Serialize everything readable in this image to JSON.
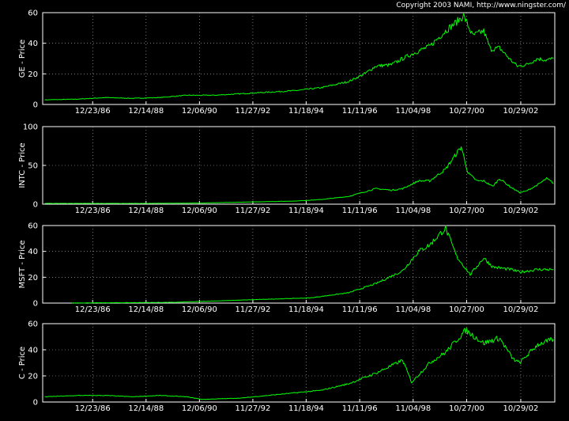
{
  "copyright": "Copyright 2003 NAMI, http://www.ningster.com/",
  "colors": {
    "background": "#000000",
    "axes": "#ffffff",
    "grid": "#bdbdbd",
    "series": "#00ff00"
  },
  "chart_data": [
    {
      "type": "line",
      "ylabel": "GE - Price",
      "ylim": [
        0,
        60
      ],
      "yticks": [
        "0",
        "20",
        "40",
        "60"
      ],
      "xticks": [
        "12/23/86",
        "12/14/88",
        "12/06/90",
        "11/27/92",
        "11/18/94",
        "11/11/96",
        "11/04/98",
        "10/27/00",
        "10/29/02"
      ],
      "grid": true,
      "series": [
        {
          "x": [
            "1985-03",
            "1986-06",
            "1987-06",
            "1988-06",
            "1989-06",
            "1990-06",
            "1991-06",
            "1992-06",
            "1993-06",
            "1994-06",
            "1995-06",
            "1996-06",
            "1997-01",
            "1997-06",
            "1998-01",
            "1998-06",
            "1999-01",
            "1999-06",
            "2000-01",
            "2000-06",
            "2000-09",
            "2001-01",
            "2001-06",
            "2001-09",
            "2002-01",
            "2002-06",
            "2002-09",
            "2003-01",
            "2003-06",
            "2003-10",
            "2004-01"
          ],
          "y": [
            3,
            3.5,
            4.5,
            4,
            4.5,
            6,
            6,
            7,
            8,
            9,
            11,
            15,
            20,
            25,
            26,
            30,
            35,
            38,
            48,
            54,
            58,
            45,
            48,
            36,
            37,
            29,
            25,
            26,
            30,
            29,
            30
          ]
        }
      ]
    },
    {
      "type": "line",
      "ylabel": "INTC - Price",
      "ylim": [
        0,
        100
      ],
      "yticks": [
        "0",
        "50",
        "100"
      ],
      "xticks": [
        "12/23/86",
        "12/14/88",
        "12/06/90",
        "11/27/92",
        "11/18/94",
        "11/11/96",
        "11/04/98",
        "10/27/00",
        "10/29/02"
      ],
      "grid": true,
      "series": [
        {
          "x": [
            "1985-03",
            "1987-01",
            "1989-01",
            "1991-01",
            "1993-01",
            "1994-06",
            "1995-06",
            "1996-06",
            "1997-06",
            "1998-01",
            "1998-06",
            "1999-01",
            "1999-06",
            "2000-01",
            "2000-08",
            "2000-11",
            "2001-03",
            "2001-06",
            "2001-10",
            "2002-01",
            "2002-06",
            "2002-10",
            "2003-01",
            "2003-06",
            "2003-10",
            "2004-01"
          ],
          "y": [
            1,
            1,
            1,
            1.5,
            3,
            4,
            6,
            10,
            20,
            18,
            20,
            30,
            30,
            45,
            74,
            40,
            30,
            30,
            23,
            33,
            22,
            15,
            17,
            25,
            33,
            27
          ]
        }
      ]
    },
    {
      "type": "line",
      "ylabel": "MSFT - Price",
      "ylim": [
        0,
        60
      ],
      "yticks": [
        "0",
        "20",
        "40",
        "60"
      ],
      "xticks": [
        "12/23/86",
        "12/14/88",
        "12/06/90",
        "11/27/92",
        "11/18/94",
        "11/11/96",
        "11/04/98",
        "10/27/00",
        "10/29/02"
      ],
      "grid": true,
      "series": [
        {
          "x": [
            "1986-03",
            "1988-01",
            "1990-01",
            "1992-01",
            "1993-06",
            "1995-01",
            "1996-06",
            "1997-06",
            "1998-06",
            "1999-01",
            "1999-06",
            "2000-01",
            "2000-06",
            "2000-12",
            "2001-06",
            "2001-10",
            "2002-06",
            "2002-10",
            "2003-06",
            "2004-01"
          ],
          "y": [
            0.1,
            0.3,
            0.6,
            2,
            3,
            4,
            8,
            15,
            25,
            40,
            45,
            58,
            36,
            22,
            35,
            28,
            26,
            24,
            26,
            26
          ]
        }
      ]
    },
    {
      "type": "line",
      "ylabel": "C - Price",
      "ylim": [
        0,
        60
      ],
      "yticks": [
        "0",
        "20",
        "40",
        "60"
      ],
      "xticks": [
        "12/23/86",
        "12/14/88",
        "12/06/90",
        "11/27/92",
        "11/18/94",
        "11/11/96",
        "11/04/98",
        "10/27/00",
        "10/29/02"
      ],
      "grid": true,
      "series": [
        {
          "x": [
            "1985-03",
            "1986-06",
            "1987-06",
            "1988-06",
            "1989-06",
            "1990-06",
            "1991-01",
            "1992-06",
            "1993-06",
            "1994-06",
            "1995-06",
            "1996-06",
            "1997-06",
            "1998-06",
            "1998-10",
            "1999-06",
            "2000-01",
            "2000-10",
            "2001-06",
            "2002-01",
            "2002-07",
            "2002-10",
            "2003-06",
            "2004-01"
          ],
          "y": [
            4,
            5,
            5,
            4,
            5,
            4,
            2,
            3,
            5,
            7,
            9,
            14,
            22,
            32,
            15,
            30,
            38,
            55,
            45,
            49,
            33,
            30,
            44,
            48
          ]
        }
      ]
    }
  ]
}
